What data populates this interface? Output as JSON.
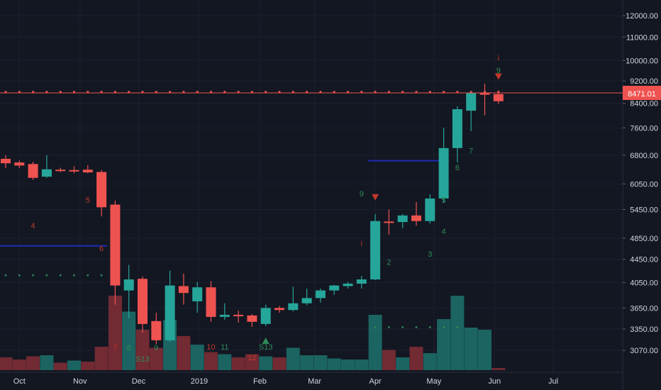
{
  "colors": {
    "background": "#131722",
    "up": "#26a69a",
    "down": "#ef5350",
    "up_volume": "#1d6f6a",
    "down_volume": "#7f2e35",
    "price_line": "#ef5350",
    "grid": "#1c2030",
    "axis_text": "#d1d4dc",
    "support_line": "#1c2bb5",
    "counter_red": "#c0392b",
    "counter_green": "#2e8b57"
  },
  "chart_data": {
    "type": "candlestick",
    "title": "",
    "scale": "log",
    "price_range": [
      2850,
      12500
    ],
    "y_ticks": [
      "12000.00",
      "11000.00",
      "10000.00",
      "9200.00",
      "8400.00",
      "7600.00",
      "6800.00",
      "6050.00",
      "5450.00",
      "4850.00",
      "4450.00",
      "4050.00",
      "3650.00",
      "3350.00",
      "3070.00"
    ],
    "x_labels": [
      {
        "label": "Oct",
        "date": "2018-10-01"
      },
      {
        "label": "Nov",
        "date": "2018-11-01"
      },
      {
        "label": "Dec",
        "date": "2018-12-01"
      },
      {
        "label": "2019",
        "date": "2019-01-01"
      },
      {
        "label": "Feb",
        "date": "2019-02-01"
      },
      {
        "label": "Mar",
        "date": "2019-03-01"
      },
      {
        "label": "Apr",
        "date": "2019-04-01"
      },
      {
        "label": "May",
        "date": "2019-05-01"
      },
      {
        "label": "Jun",
        "date": "2019-06-01"
      },
      {
        "label": "Jul",
        "date": "2019-07-01"
      }
    ],
    "last_price": "8471.01",
    "candles": [
      {
        "date": "2018-09-24",
        "open": 6700,
        "high": 6800,
        "low": 6450,
        "close": 6580
      },
      {
        "date": "2018-10-01",
        "open": 6600,
        "high": 6650,
        "low": 6450,
        "close": 6520
      },
      {
        "date": "2018-10-08",
        "open": 6560,
        "high": 6620,
        "low": 6150,
        "close": 6200
      },
      {
        "date": "2018-10-15",
        "open": 6230,
        "high": 6800,
        "low": 6200,
        "close": 6420
      },
      {
        "date": "2018-10-22",
        "open": 6410,
        "high": 6460,
        "low": 6350,
        "close": 6390
      },
      {
        "date": "2018-10-29",
        "open": 6400,
        "high": 6500,
        "low": 6320,
        "close": 6370
      },
      {
        "date": "2018-11-05",
        "open": 6410,
        "high": 6530,
        "low": 6320,
        "close": 6340
      },
      {
        "date": "2018-11-12",
        "open": 6350,
        "high": 6400,
        "low": 5300,
        "close": 5500
      },
      {
        "date": "2018-11-19",
        "open": 5560,
        "high": 5650,
        "low": 3700,
        "close": 4000
      },
      {
        "date": "2018-11-26",
        "open": 3920,
        "high": 4350,
        "low": 3500,
        "close": 4100
      },
      {
        "date": "2018-12-03",
        "open": 4110,
        "high": 4150,
        "low": 3300,
        "close": 3420
      },
      {
        "date": "2018-12-10",
        "open": 3460,
        "high": 3580,
        "low": 3150,
        "close": 3200
      },
      {
        "date": "2018-12-17",
        "open": 3200,
        "high": 4250,
        "low": 3180,
        "close": 4000
      },
      {
        "date": "2018-12-24",
        "open": 3990,
        "high": 4200,
        "low": 3700,
        "close": 3880
      },
      {
        "date": "2018-12-31",
        "open": 3750,
        "high": 4060,
        "low": 3580,
        "close": 3970
      },
      {
        "date": "2019-01-07",
        "open": 3970,
        "high": 4070,
        "low": 3450,
        "close": 3520
      },
      {
        "date": "2019-01-14",
        "open": 3520,
        "high": 3720,
        "low": 3480,
        "close": 3550
      },
      {
        "date": "2019-01-21",
        "open": 3550,
        "high": 3610,
        "low": 3440,
        "close": 3530
      },
      {
        "date": "2019-01-28",
        "open": 3540,
        "high": 3560,
        "low": 3380,
        "close": 3450
      },
      {
        "date": "2019-02-04",
        "open": 3420,
        "high": 3700,
        "low": 3390,
        "close": 3650
      },
      {
        "date": "2019-02-11",
        "open": 3650,
        "high": 3680,
        "low": 3580,
        "close": 3620
      },
      {
        "date": "2019-02-18",
        "open": 3620,
        "high": 3980,
        "low": 3600,
        "close": 3720
      },
      {
        "date": "2019-02-25",
        "open": 3720,
        "high": 3950,
        "low": 3690,
        "close": 3800
      },
      {
        "date": "2019-03-04",
        "open": 3800,
        "high": 3950,
        "low": 3730,
        "close": 3920
      },
      {
        "date": "2019-03-11",
        "open": 3920,
        "high": 4010,
        "low": 3850,
        "close": 4000
      },
      {
        "date": "2019-03-18",
        "open": 3990,
        "high": 4060,
        "low": 3950,
        "close": 4030
      },
      {
        "date": "2019-03-25",
        "open": 4030,
        "high": 4160,
        "low": 3950,
        "close": 4100
      },
      {
        "date": "2019-04-01",
        "open": 4100,
        "high": 5350,
        "low": 4090,
        "close": 5200
      },
      {
        "date": "2019-04-08",
        "open": 5190,
        "high": 5450,
        "low": 4920,
        "close": 5170
      },
      {
        "date": "2019-04-15",
        "open": 5180,
        "high": 5350,
        "low": 5050,
        "close": 5320
      },
      {
        "date": "2019-04-22",
        "open": 5320,
        "high": 5620,
        "low": 5100,
        "close": 5200
      },
      {
        "date": "2019-04-29",
        "open": 5200,
        "high": 5800,
        "low": 5150,
        "close": 5700
      },
      {
        "date": "2019-05-06",
        "open": 5700,
        "high": 7600,
        "low": 5600,
        "close": 7000
      },
      {
        "date": "2019-05-13",
        "open": 7000,
        "high": 8300,
        "low": 6600,
        "close": 8200
      },
      {
        "date": "2019-05-20",
        "open": 8150,
        "high": 8800,
        "low": 7500,
        "close": 8750
      },
      {
        "date": "2019-05-27",
        "open": 8750,
        "high": 9100,
        "low": 8000,
        "close": 8700
      },
      {
        "date": "2019-06-03",
        "open": 8720,
        "high": 8850,
        "low": 8380,
        "close": 8471
      }
    ],
    "volume": [
      {
        "date": "2018-09-24",
        "value": 0.12,
        "dir": "down"
      },
      {
        "date": "2018-10-01",
        "value": 0.1,
        "dir": "down"
      },
      {
        "date": "2018-10-08",
        "value": 0.13,
        "dir": "down"
      },
      {
        "date": "2018-10-15",
        "value": 0.14,
        "dir": "up"
      },
      {
        "date": "2018-10-22",
        "value": 0.07,
        "dir": "down"
      },
      {
        "date": "2018-10-29",
        "value": 0.09,
        "dir": "up"
      },
      {
        "date": "2018-11-05",
        "value": 0.08,
        "dir": "down"
      },
      {
        "date": "2018-11-12",
        "value": 0.22,
        "dir": "down"
      },
      {
        "date": "2018-11-19",
        "value": 0.7,
        "dir": "down"
      },
      {
        "date": "2018-11-26",
        "value": 0.55,
        "dir": "up"
      },
      {
        "date": "2018-12-03",
        "value": 0.38,
        "dir": "down"
      },
      {
        "date": "2018-12-10",
        "value": 0.21,
        "dir": "down"
      },
      {
        "date": "2018-12-17",
        "value": 0.47,
        "dir": "up"
      },
      {
        "date": "2018-12-24",
        "value": 0.32,
        "dir": "down"
      },
      {
        "date": "2018-12-31",
        "value": 0.24,
        "dir": "up"
      },
      {
        "date": "2019-01-07",
        "value": 0.17,
        "dir": "down"
      },
      {
        "date": "2019-01-14",
        "value": 0.15,
        "dir": "up"
      },
      {
        "date": "2019-01-21",
        "value": 0.12,
        "dir": "down"
      },
      {
        "date": "2019-01-28",
        "value": 0.15,
        "dir": "down"
      },
      {
        "date": "2019-02-04",
        "value": 0.13,
        "dir": "up"
      },
      {
        "date": "2019-02-11",
        "value": 0.12,
        "dir": "down"
      },
      {
        "date": "2019-02-18",
        "value": 0.21,
        "dir": "up"
      },
      {
        "date": "2019-02-25",
        "value": 0.14,
        "dir": "up"
      },
      {
        "date": "2019-03-04",
        "value": 0.14,
        "dir": "up"
      },
      {
        "date": "2019-03-11",
        "value": 0.11,
        "dir": "up"
      },
      {
        "date": "2019-03-18",
        "value": 0.1,
        "dir": "up"
      },
      {
        "date": "2019-03-25",
        "value": 0.1,
        "dir": "up"
      },
      {
        "date": "2019-04-01",
        "value": 0.52,
        "dir": "up"
      },
      {
        "date": "2019-04-08",
        "value": 0.19,
        "dir": "down"
      },
      {
        "date": "2019-04-15",
        "value": 0.12,
        "dir": "up"
      },
      {
        "date": "2019-04-22",
        "value": 0.22,
        "dir": "down"
      },
      {
        "date": "2019-04-29",
        "value": 0.16,
        "dir": "up"
      },
      {
        "date": "2019-05-06",
        "value": 0.48,
        "dir": "up"
      },
      {
        "date": "2019-05-13",
        "value": 0.7,
        "dir": "up"
      },
      {
        "date": "2019-05-20",
        "value": 0.4,
        "dir": "up"
      },
      {
        "date": "2019-05-27",
        "value": 0.38,
        "dir": "up"
      },
      {
        "date": "2019-06-03",
        "value": 0.02,
        "dir": "down"
      }
    ],
    "annotations": [
      {
        "date": "2018-10-08",
        "price": 5050,
        "text": "4",
        "color": "red"
      },
      {
        "date": "2018-11-05",
        "price": 5600,
        "text": "5",
        "color": "red"
      },
      {
        "date": "2018-11-12",
        "price": 4600,
        "text": "6",
        "color": "red"
      },
      {
        "date": "2018-11-19",
        "price": 3070,
        "text": "7",
        "color": "red"
      },
      {
        "date": "2018-11-26",
        "price": 3070,
        "text": "8",
        "color": "green"
      },
      {
        "date": "2018-12-03",
        "price": 2935,
        "text": "S13",
        "color": "green"
      },
      {
        "date": "2018-12-10",
        "price": 3070,
        "text": "9",
        "color": "green"
      },
      {
        "date": "2019-01-07",
        "price": 3080,
        "text": "10",
        "color": "red"
      },
      {
        "date": "2019-01-14",
        "price": 3080,
        "text": "11",
        "color": "green"
      },
      {
        "date": "2019-01-28",
        "price": 2950,
        "text": "12",
        "color": "red"
      },
      {
        "date": "2019-02-04",
        "price": 3080,
        "text": "S13",
        "color": "green"
      },
      {
        "date": "2019-03-25",
        "price": 5750,
        "text": "9",
        "color": "green"
      },
      {
        "date": "2019-03-25",
        "price": 4700,
        "text": "i",
        "color": "red"
      },
      {
        "date": "2019-04-08",
        "price": 4350,
        "text": "2",
        "color": "green"
      },
      {
        "date": "2019-04-29",
        "price": 4500,
        "text": "3",
        "color": "green"
      },
      {
        "date": "2019-05-06",
        "price": 4930,
        "text": "4",
        "color": "green"
      },
      {
        "date": "2019-05-06",
        "price": 5600,
        "text": "5",
        "color": "green"
      },
      {
        "date": "2019-05-13",
        "price": 6400,
        "text": "6",
        "color": "green"
      },
      {
        "date": "2019-05-20",
        "price": 6850,
        "text": "7",
        "color": "green"
      },
      {
        "date": "2019-06-03",
        "price": 10000,
        "text": "i",
        "color": "red"
      },
      {
        "date": "2019-06-03",
        "price": 9500,
        "text": "9",
        "color": "green"
      }
    ]
  }
}
